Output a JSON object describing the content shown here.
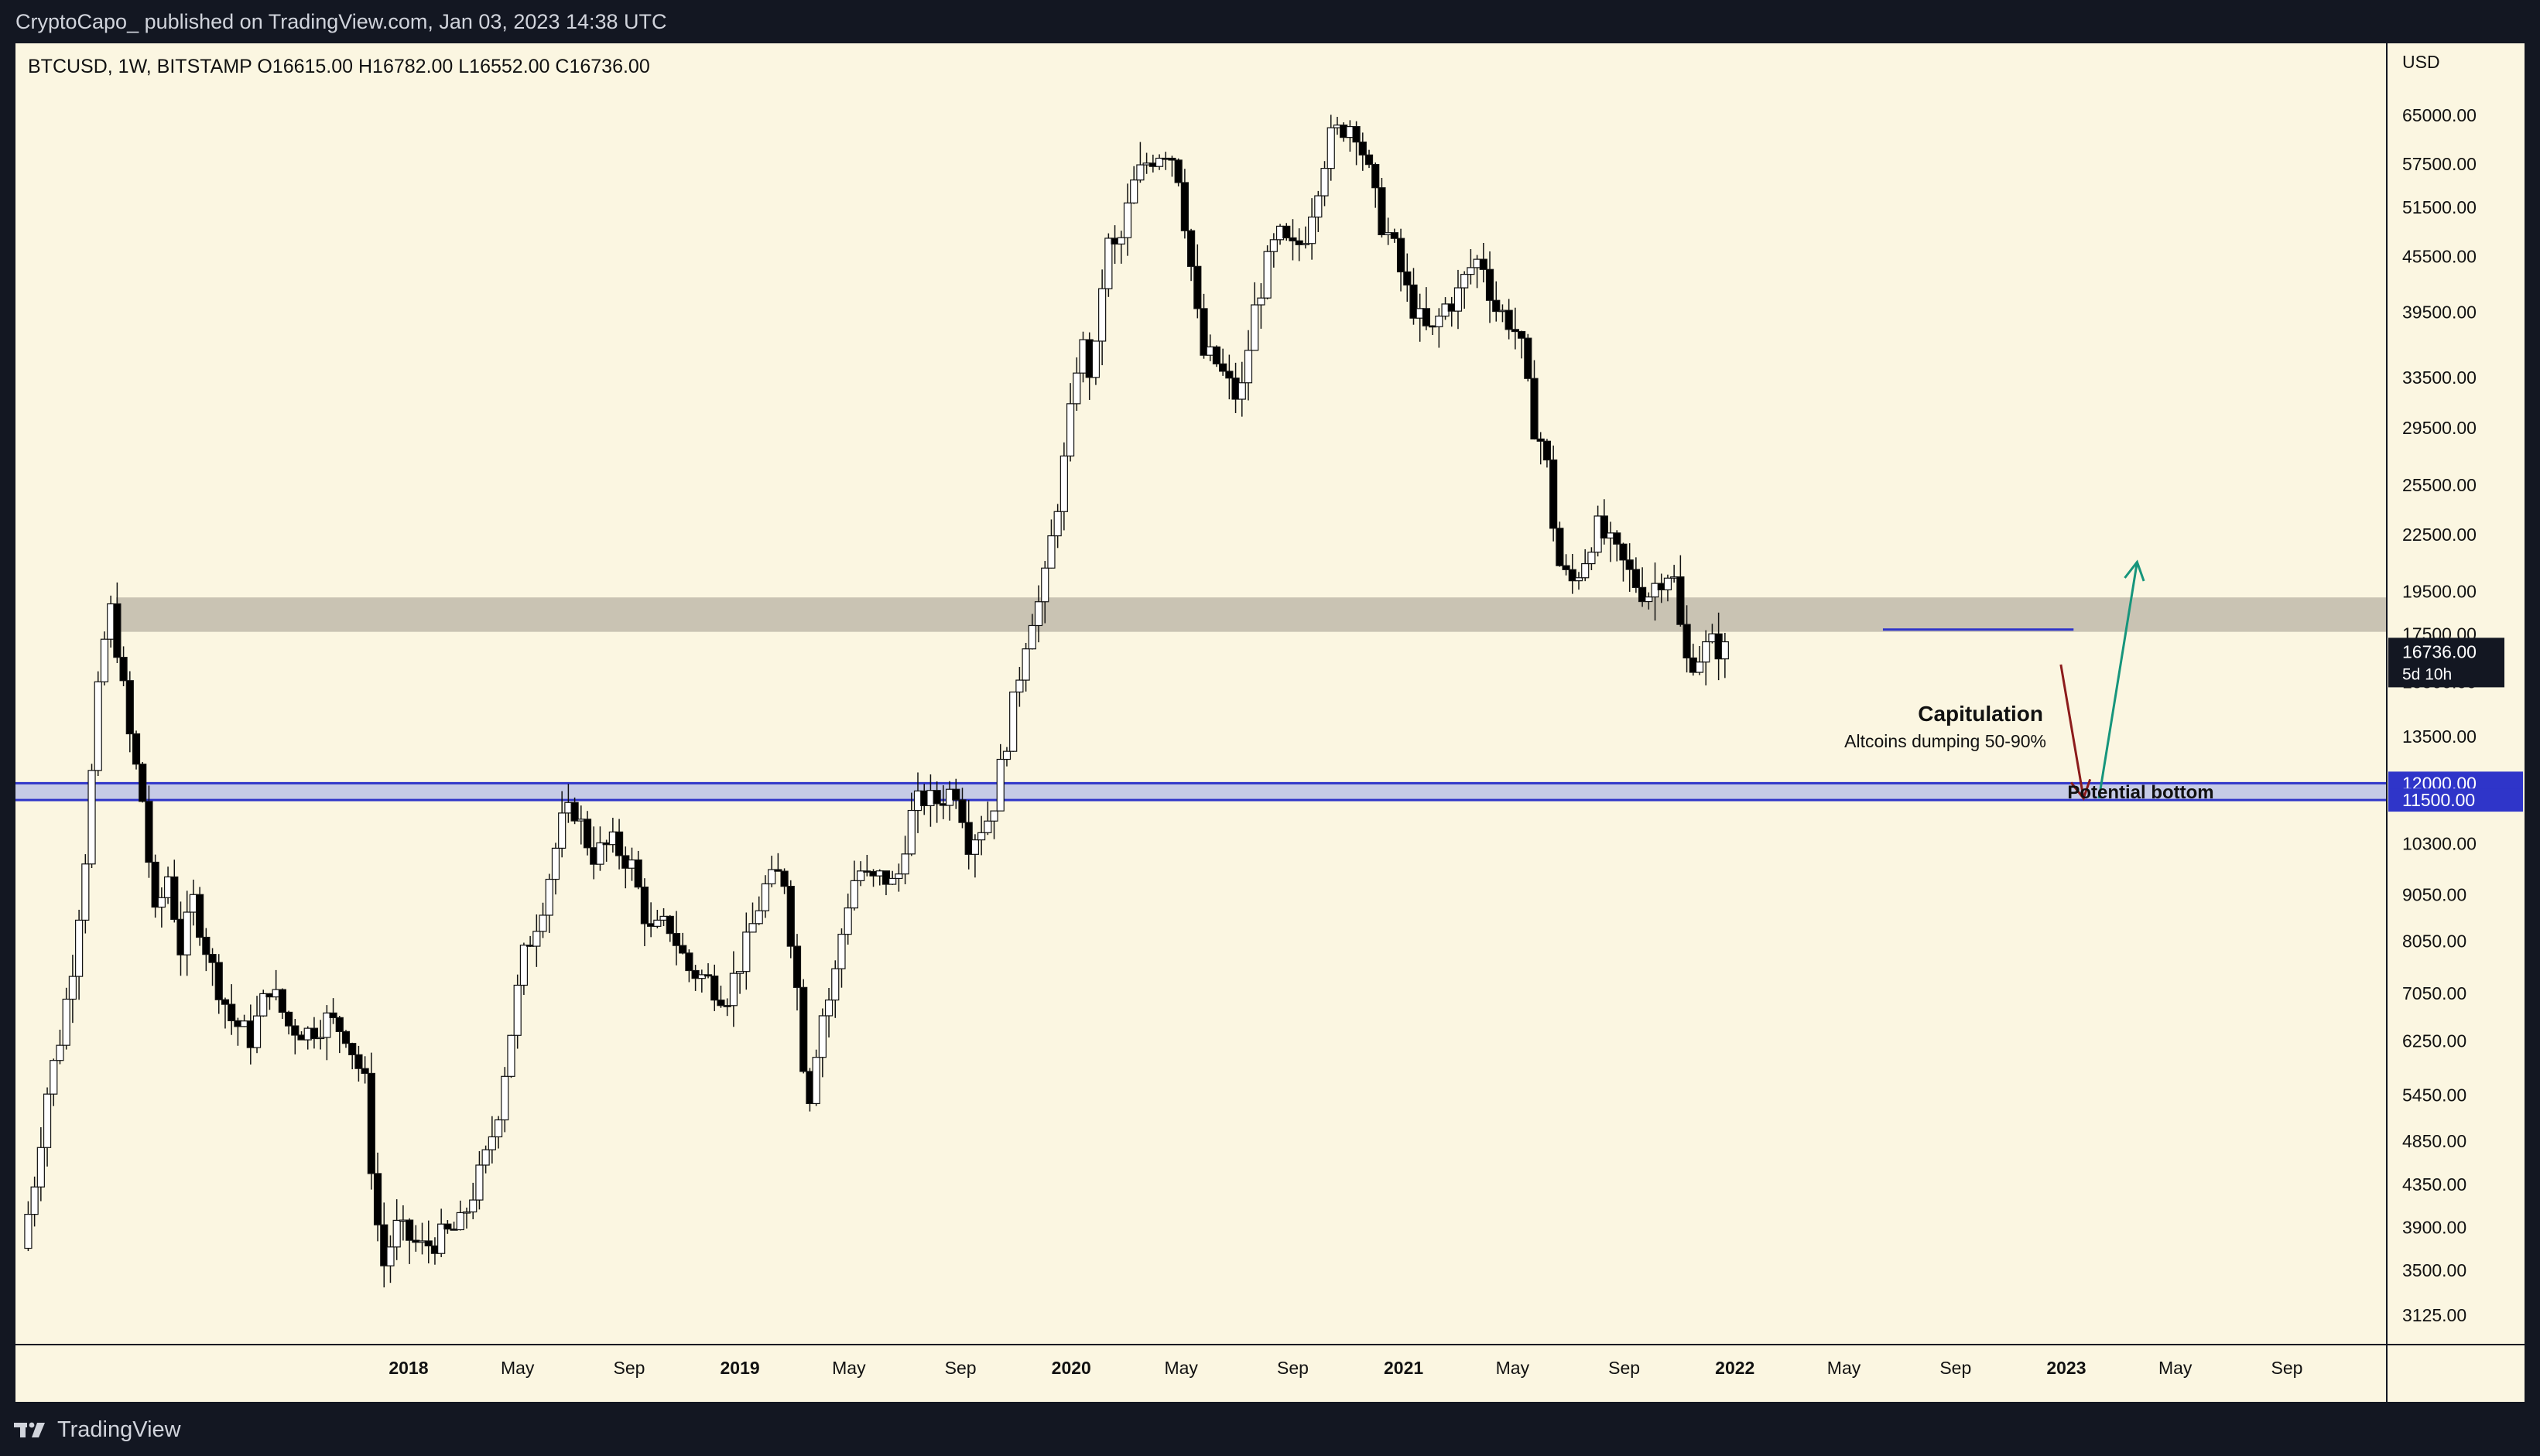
{
  "header": {
    "publish_line": "CryptoCapo_ published on TradingView.com, Jan 03, 2023 14:38 UTC"
  },
  "footer": {
    "brand": "TradingView"
  },
  "colors": {
    "background": "#fbf6e1",
    "frame": "#131722",
    "candle_up": "#ffffff",
    "candle_down": "#000000",
    "zone_grey": "#c9c3b3",
    "zone_blue_fill": "#c6cbe6",
    "zone_blue_line": "#2f35c9",
    "arrow_down": "#8c1b1b",
    "arrow_up": "#16957c"
  },
  "chart_data": {
    "type": "candlestick",
    "symbol_line": "BTCUSD, 1W, BITSTAMP  O16615.00  H16782.00  L16552.00  C16736.00",
    "currency": "USD",
    "scale": "log",
    "ylim": [
      2900,
      78000
    ],
    "price_ticks": [
      "65000.00",
      "57500.00",
      "51500.00",
      "45500.00",
      "39500.00",
      "33500.00",
      "29500.00",
      "25500.00",
      "22500.00",
      "19500.00",
      "17500.00",
      "15500.00",
      "13500.00",
      "10300.00",
      "9050.00",
      "8050.00",
      "7050.00",
      "6250.00",
      "5450.00",
      "4850.00",
      "4350.00",
      "3900.00",
      "3500.00",
      "3125.00"
    ],
    "x_ticks": [
      {
        "label": "2018",
        "bold": true,
        "date": "2018-01-01"
      },
      {
        "label": "May",
        "bold": false,
        "date": "2018-05-01"
      },
      {
        "label": "Sep",
        "bold": false,
        "date": "2018-09-01"
      },
      {
        "label": "2019",
        "bold": true,
        "date": "2019-01-01"
      },
      {
        "label": "May",
        "bold": false,
        "date": "2019-05-01"
      },
      {
        "label": "Sep",
        "bold": false,
        "date": "2019-09-01"
      },
      {
        "label": "2020",
        "bold": true,
        "date": "2020-01-01"
      },
      {
        "label": "May",
        "bold": false,
        "date": "2020-05-01"
      },
      {
        "label": "Sep",
        "bold": false,
        "date": "2020-09-01"
      },
      {
        "label": "2021",
        "bold": true,
        "date": "2021-01-01"
      },
      {
        "label": "May",
        "bold": false,
        "date": "2021-05-01"
      },
      {
        "label": "Sep",
        "bold": false,
        "date": "2021-09-01"
      },
      {
        "label": "2022",
        "bold": true,
        "date": "2022-01-01"
      },
      {
        "label": "May",
        "bold": false,
        "date": "2022-05-01"
      },
      {
        "label": "Sep",
        "bold": false,
        "date": "2022-09-01"
      },
      {
        "label": "2023",
        "bold": true,
        "date": "2023-01-01"
      },
      {
        "label": "May",
        "bold": false,
        "date": "2023-05-01"
      },
      {
        "label": "Sep",
        "bold": false,
        "date": "2023-09-01"
      }
    ],
    "xlim": [
      "2016-10-25",
      "2023-12-20"
    ],
    "close_path": [
      [
        "2016-11-01",
        3700
      ],
      [
        "2016-11-15",
        4400
      ],
      [
        "2016-11-29",
        5500
      ],
      [
        "2016-12-13",
        6300
      ],
      [
        "2016-12-27",
        7600
      ],
      [
        "2017-01-10",
        10000
      ],
      [
        "2017-01-24",
        15000
      ],
      [
        "2017-02-05",
        19000
      ],
      [
        "2017-02-14",
        17000
      ],
      [
        "2017-02-28",
        13500
      ],
      [
        "2017-03-14",
        11500
      ],
      [
        "2017-03-28",
        8500
      ],
      [
        "2017-04-11",
        9500
      ],
      [
        "2017-04-25",
        7900
      ],
      [
        "2017-05-09",
        8900
      ],
      [
        "2017-05-30",
        7500
      ],
      [
        "2017-06-20",
        6600
      ],
      [
        "2017-07-11",
        6300
      ],
      [
        "2017-08-01",
        7200
      ],
      [
        "2017-08-22",
        6500
      ],
      [
        "2017-09-12",
        6400
      ],
      [
        "2017-10-03",
        6600
      ],
      [
        "2017-10-24",
        6400
      ],
      [
        "2017-11-14",
        5600
      ],
      [
        "2017-11-25",
        4100
      ],
      [
        "2017-12-05",
        3550
      ],
      [
        "2017-12-18",
        3900
      ],
      [
        "2018-01-15",
        3700
      ],
      [
        "2018-02-26",
        3900
      ],
      [
        "2018-03-26",
        4600
      ],
      [
        "2018-04-09",
        5200
      ],
      [
        "2018-05-07",
        7700
      ],
      [
        "2018-05-28",
        8800
      ],
      [
        "2018-06-18",
        10800
      ],
      [
        "2018-07-02",
        11300
      ],
      [
        "2018-07-23",
        10000
      ],
      [
        "2018-08-13",
        10300
      ],
      [
        "2018-09-03",
        9800
      ],
      [
        "2018-09-24",
        8200
      ],
      [
        "2018-10-15",
        8400
      ],
      [
        "2018-11-05",
        7500
      ],
      [
        "2018-11-26",
        7300
      ],
      [
        "2018-12-17",
        7000
      ],
      [
        "2019-01-07",
        7900
      ],
      [
        "2019-01-28",
        9200
      ],
      [
        "2019-02-18",
        9600
      ],
      [
        "2019-03-09",
        6600
      ],
      [
        "2019-03-16",
        5200
      ],
      [
        "2019-03-30",
        6600
      ],
      [
        "2019-04-13",
        7100
      ],
      [
        "2019-04-27",
        8700
      ],
      [
        "2019-05-11",
        9700
      ],
      [
        "2019-05-25",
        9300
      ],
      [
        "2019-06-08",
        9500
      ],
      [
        "2019-06-22",
        9200
      ],
      [
        "2019-07-06",
        10900
      ],
      [
        "2019-07-20",
        11600
      ],
      [
        "2019-08-03",
        11400
      ],
      [
        "2019-08-17",
        11700
      ],
      [
        "2019-08-31",
        11900
      ],
      [
        "2019-09-07",
        10300
      ],
      [
        "2019-09-21",
        10700
      ],
      [
        "2019-10-05",
        11100
      ],
      [
        "2019-10-19",
        13000
      ],
      [
        "2019-11-02",
        15300
      ],
      [
        "2019-11-16",
        18200
      ],
      [
        "2019-11-30",
        19200
      ],
      [
        "2019-12-14",
        23500
      ],
      [
        "2019-12-28",
        28500
      ],
      [
        "2020-01-04",
        33000
      ],
      [
        "2020-01-11",
        37000
      ],
      [
        "2020-01-25",
        33000
      ],
      [
        "2020-02-08",
        47000
      ],
      [
        "2020-02-22",
        46000
      ],
      [
        "2020-03-08",
        54000
      ],
      [
        "2020-03-22",
        57500
      ],
      [
        "2020-04-12",
        60000
      ],
      [
        "2020-04-26",
        58000
      ],
      [
        "2020-05-10",
        46000
      ],
      [
        "2020-05-24",
        35500
      ],
      [
        "2020-06-07",
        35000
      ],
      [
        "2020-06-21",
        33000
      ],
      [
        "2020-07-05",
        31500
      ],
      [
        "2020-07-19",
        39000
      ],
      [
        "2020-08-02",
        44000
      ],
      [
        "2020-08-16",
        48000
      ],
      [
        "2020-08-30",
        46000
      ],
      [
        "2020-09-13",
        47500
      ],
      [
        "2020-09-27",
        54000
      ],
      [
        "2020-10-11",
        61000
      ],
      [
        "2020-10-25",
        63000
      ],
      [
        "2020-11-08",
        64000
      ],
      [
        "2020-11-22",
        57000
      ],
      [
        "2020-12-06",
        50000
      ],
      [
        "2020-12-20",
        47000
      ],
      [
        "2021-01-03",
        42000
      ],
      [
        "2021-01-17",
        39000
      ],
      [
        "2021-01-31",
        37000
      ],
      [
        "2021-02-14",
        40000
      ],
      [
        "2021-02-28",
        41000
      ],
      [
        "2021-03-14",
        44000
      ],
      [
        "2021-03-28",
        45500
      ],
      [
        "2021-04-11",
        40000
      ],
      [
        "2021-04-25",
        39000
      ],
      [
        "2021-05-09",
        37000
      ],
      [
        "2021-05-23",
        30000
      ],
      [
        "2021-06-06",
        27800
      ],
      [
        "2021-06-20",
        21000
      ],
      [
        "2021-07-04",
        19800
      ],
      [
        "2021-07-18",
        21000
      ],
      [
        "2021-08-01",
        23000
      ],
      [
        "2021-08-15",
        22000
      ],
      [
        "2021-08-29",
        21000
      ],
      [
        "2021-09-12",
        20000
      ],
      [
        "2021-09-26",
        19300
      ],
      [
        "2021-10-10",
        20200
      ],
      [
        "2021-10-24",
        20700
      ],
      [
        "2021-11-07",
        16300
      ],
      [
        "2021-11-21",
        16500
      ],
      [
        "2021-12-05",
        17100
      ],
      [
        "2021-12-19",
        16800
      ],
      [
        "2021-12-26",
        16736
      ]
    ],
    "annotations": {
      "grey_zone": [
        17600,
        19200
      ],
      "blue_zone": [
        11500,
        12000
      ],
      "blue_zone_line_prices": [
        "12000.00",
        "11500.00"
      ],
      "range_line_price": 17700,
      "current_price": "16736.00",
      "countdown": "5d 10h",
      "capitulation_title": "Capitulation",
      "capitulation_sub": "Altcoins dumping 50-90%",
      "potential_bottom": "Potential bottom",
      "arrow_down": {
        "from": [
          "2022-12-26",
          16200
        ],
        "to": [
          "2023-01-20",
          11550
        ]
      },
      "arrow_up": {
        "from": [
          "2023-02-06",
          11550
        ],
        "to": [
          "2023-03-20",
          21000
        ]
      }
    }
  }
}
